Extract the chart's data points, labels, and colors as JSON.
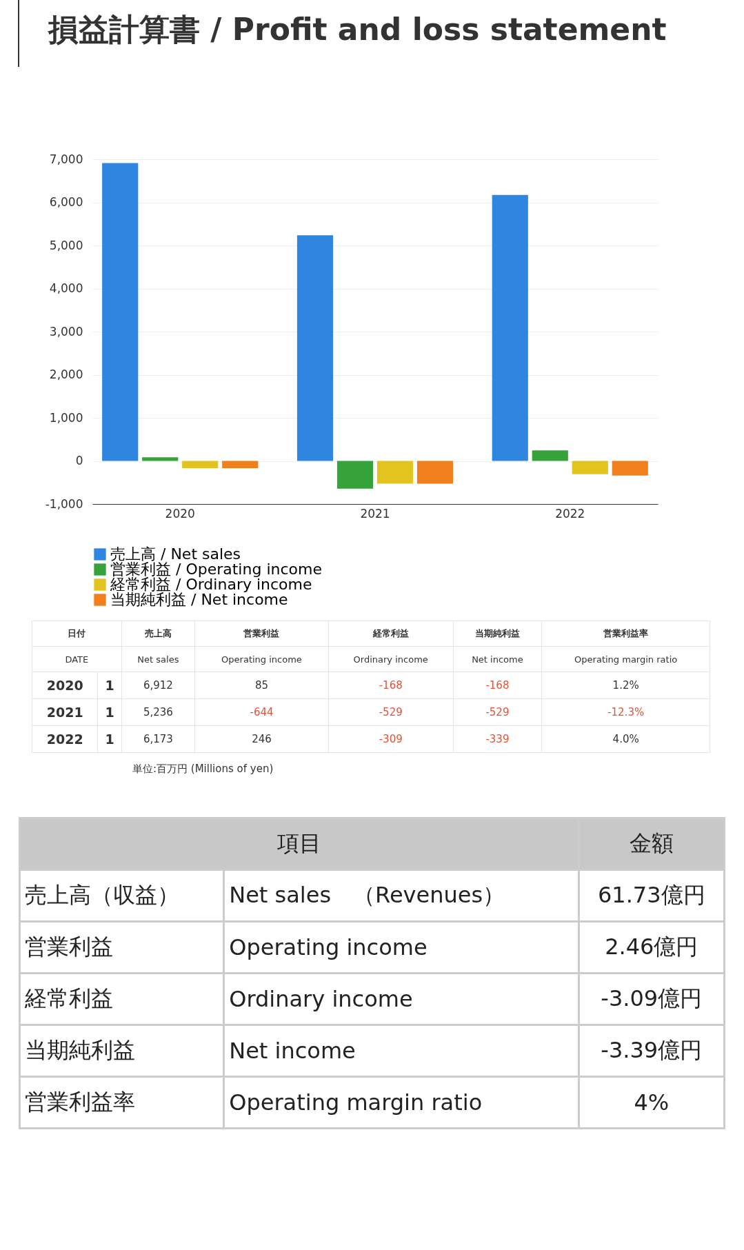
{
  "chart_data": [
    {
      "type": "bar",
      "title": "損益計算書 / Profit and loss statement",
      "categories": [
        "2020",
        "2021",
        "2022"
      ],
      "series": [
        {
          "name": "売上高 / Net sales",
          "color": "#2f86e0",
          "values": [
            6912,
            5236,
            6173
          ]
        },
        {
          "name": "営業利益 / Operating income",
          "color": "#35a33a",
          "values": [
            85,
            -644,
            246
          ]
        },
        {
          "name": "経常利益 / Ordinary income",
          "color": "#e2c31f",
          "values": [
            -168,
            -529,
            -309
          ]
        },
        {
          "name": "当期純利益 / Net income",
          "color": "#f07f1c",
          "values": [
            -168,
            -529,
            -339
          ]
        }
      ],
      "ylim": [
        -1000,
        7000
      ],
      "yticks": [
        {
          "value": -1000,
          "label": "-1,000"
        },
        0,
        {
          "value": 1000,
          "label": "1,000"
        },
        {
          "value": 2000,
          "label": "2,000"
        },
        {
          "value": 3000,
          "label": "3,000"
        },
        {
          "value": 4000,
          "label": "4,000"
        },
        {
          "value": 5000,
          "label": "5,000"
        },
        {
          "value": 6000,
          "label": "6,000"
        },
        {
          "value": 7000,
          "label": "7,000"
        }
      ],
      "grid": "y",
      "legend": "bottom left"
    },
    {
      "type": "other",
      "annotations": [
        "日付",
        "売上高",
        "営業利益",
        "経常利益",
        "当期純利益",
        "営業利益率",
        "DATE",
        "Net sales",
        "Operating income",
        "Ordinary income",
        "Net income",
        "Operating margin ratio",
        "2020",
        "1",
        "6,912",
        "85",
        "-168",
        "-168",
        "1.2%",
        "2021",
        "1",
        "5,236",
        "-644",
        "-529",
        "-529",
        "-12.3%",
        "2022",
        "1",
        "6,173",
        "246",
        "-309",
        "-339",
        "4.0%",
        "単位:百万円 (Millions of yen)"
      ]
    },
    {
      "type": "other",
      "annotations": [
        "項目",
        "金額",
        "売上高（収益）",
        "Net sales　（Revenues）",
        "61.73億円",
        "営業利益",
        "Operating income",
        "2.46億円",
        "経常利益",
        "Ordinary income",
        "-3.09億円",
        "当期純利益",
        "Net income",
        "-3.39億円",
        "営業利益率",
        "Operating margin ratio",
        "4%"
      ]
    }
  ]
}
